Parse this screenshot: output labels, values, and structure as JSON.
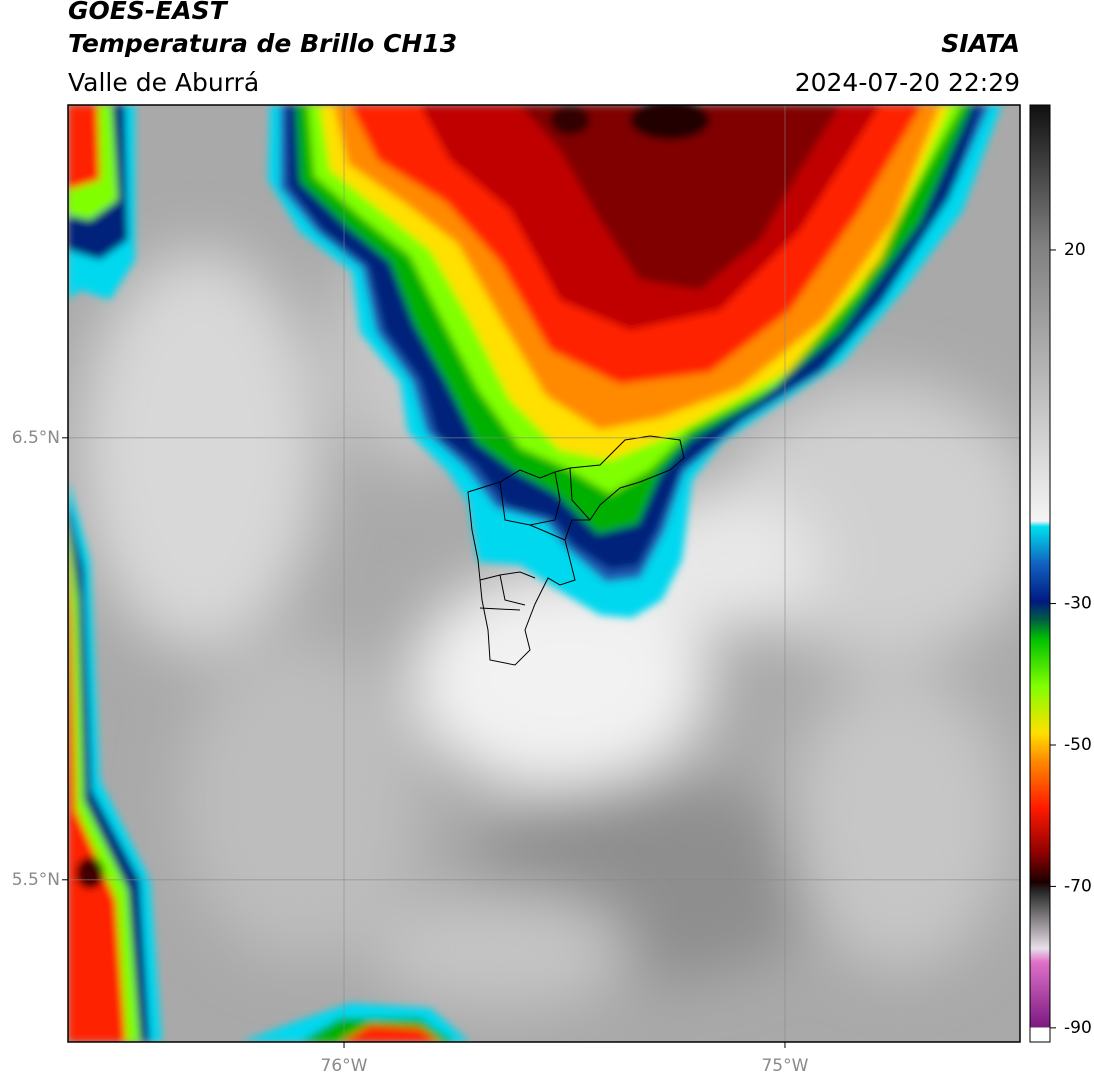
{
  "header": {
    "title": "GOES-EAST",
    "subtitle": "Temperatura de Brillo CH13",
    "region": "Valle de Aburrá",
    "source": "SIATA",
    "datetime": "2024-07-20 22:29"
  },
  "map": {
    "xlim": [
      -76.626,
      -74.467
    ],
    "ylim": [
      5.133,
      7.253
    ],
    "xticks": [
      {
        "value": -76,
        "label": "76°W"
      },
      {
        "value": -75,
        "label": "75°W"
      }
    ],
    "yticks": [
      {
        "value": 6.5,
        "label": "6.5°N"
      },
      {
        "value": 5.5,
        "label": "5.5°N"
      }
    ],
    "grid": true
  },
  "colorbar": {
    "lim": [
      -92,
      40.5
    ],
    "ticks": [
      20,
      -30,
      -50,
      -70,
      -90
    ]
  }
}
